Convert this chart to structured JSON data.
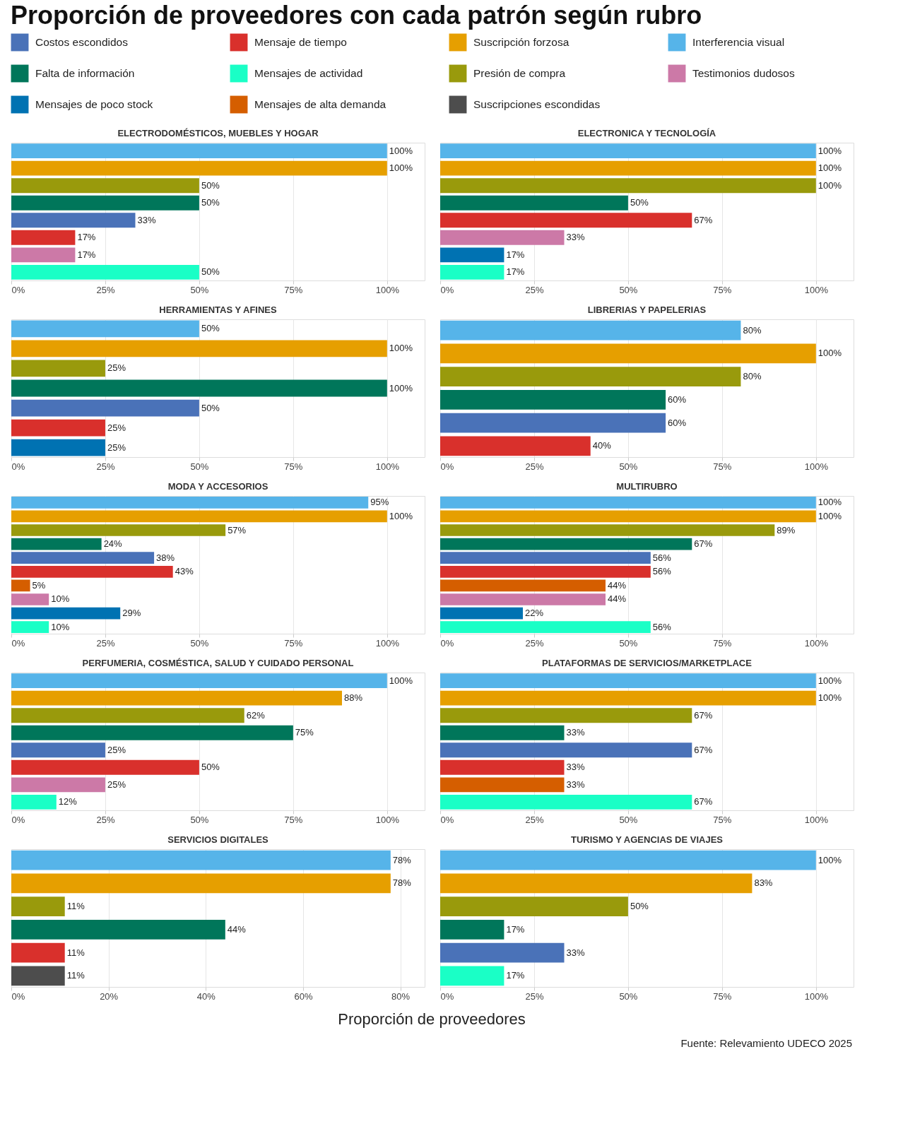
{
  "chart_data": [
    {
      "type": "other",
      "title": "Proporción de proveedores con cada patrón según rubro",
      "categories": [
        "Costos escondidos",
        "Falta de información",
        "Mensajes de poco stock",
        "Mensaje de tiempo",
        "Mensajes de actividad",
        "Mensajes de alta demanda",
        "Suscripción forzosa",
        "Presión de compra",
        "Suscripciones escondidas",
        "Interferencia visual",
        "Testimonios dudosos"
      ],
      "colors": [
        "#4a72b8",
        "#00765a",
        "#0072b2",
        "#d9302c",
        "#1affc6",
        "#d55e00",
        "#e69f00",
        "#999a0c",
        "#4d4d4d",
        "#56b4e9",
        "#cc79a7"
      ]
    },
    {
      "type": "bar",
      "orientation": "horizontal",
      "title": "ELECTRODOMÉSTICOS, MUEBLES Y HOGAR",
      "grid": "x",
      "xlim": [
        0,
        110
      ],
      "xticks": [
        {
          "value": 0,
          "label": "0%"
        },
        {
          "value": 25,
          "label": "25%"
        },
        {
          "value": 50,
          "label": "50%"
        },
        {
          "value": 75,
          "label": "75%"
        },
        {
          "value": 100,
          "label": "100%"
        }
      ],
      "categories": [
        null,
        null,
        null,
        null,
        null,
        null,
        null,
        null
      ],
      "values": [
        100,
        100,
        50,
        50,
        33,
        17,
        17,
        50
      ],
      "colors": [
        "#56b4e9",
        "#e69f00",
        "#999a0c",
        "#00765a",
        "#4a72b8",
        "#d9302c",
        "#cc79a7",
        "#1affc6"
      ],
      "value_labels": [
        "100%",
        "100%",
        "50%",
        "50%",
        "33%",
        "17%",
        "17%",
        "50%"
      ]
    },
    {
      "type": "bar",
      "orientation": "horizontal",
      "title": "ELECTRONICA Y TECNOLOGÍA",
      "grid": "x",
      "xlim": [
        0,
        110
      ],
      "xticks": [
        {
          "value": 0,
          "label": "0%"
        },
        {
          "value": 25,
          "label": "25%"
        },
        {
          "value": 50,
          "label": "50%"
        },
        {
          "value": 75,
          "label": "75%"
        },
        {
          "value": 100,
          "label": "100%"
        }
      ],
      "categories": [
        null,
        null,
        null,
        null,
        null,
        null,
        null,
        null
      ],
      "values": [
        100,
        100,
        100,
        50,
        67,
        33,
        17,
        17
      ],
      "colors": [
        "#56b4e9",
        "#e69f00",
        "#999a0c",
        "#00765a",
        "#d9302c",
        "#cc79a7",
        "#0072b2",
        "#1affc6"
      ],
      "value_labels": [
        "100%",
        "100%",
        "100%",
        "50%",
        "67%",
        "33%",
        "17%",
        "17%"
      ]
    },
    {
      "type": "bar",
      "orientation": "horizontal",
      "title": "HERRAMIENTAS Y AFINES",
      "grid": "x",
      "xlim": [
        0,
        110
      ],
      "xticks": [
        {
          "value": 0,
          "label": "0%"
        },
        {
          "value": 25,
          "label": "25%"
        },
        {
          "value": 50,
          "label": "50%"
        },
        {
          "value": 75,
          "label": "75%"
        },
        {
          "value": 100,
          "label": "100%"
        }
      ],
      "categories": [
        null,
        null,
        null,
        null,
        null,
        null,
        null
      ],
      "values": [
        50,
        100,
        25,
        100,
        50,
        25,
        25
      ],
      "colors": [
        "#56b4e9",
        "#e69f00",
        "#999a0c",
        "#00765a",
        "#4a72b8",
        "#d9302c",
        "#0072b2"
      ],
      "value_labels": [
        "50%",
        "100%",
        "25%",
        "100%",
        "50%",
        "25%",
        "25%"
      ]
    },
    {
      "type": "bar",
      "orientation": "horizontal",
      "title": "LIBRERIAS Y PAPELERIAS",
      "grid": "x",
      "xlim": [
        0,
        110
      ],
      "xticks": [
        {
          "value": 0,
          "label": "0%"
        },
        {
          "value": 25,
          "label": "25%"
        },
        {
          "value": 50,
          "label": "50%"
        },
        {
          "value": 75,
          "label": "75%"
        },
        {
          "value": 100,
          "label": "100%"
        }
      ],
      "categories": [
        null,
        null,
        null,
        null,
        null,
        null
      ],
      "values": [
        80,
        100,
        80,
        60,
        60,
        40
      ],
      "colors": [
        "#56b4e9",
        "#e69f00",
        "#999a0c",
        "#00765a",
        "#4a72b8",
        "#d9302c"
      ],
      "value_labels": [
        "80%",
        "100%",
        "80%",
        "60%",
        "60%",
        "40%"
      ]
    },
    {
      "type": "bar",
      "orientation": "horizontal",
      "title": "MODA Y ACCESORIOS",
      "grid": "x",
      "xlim": [
        0,
        110
      ],
      "xticks": [
        {
          "value": 0,
          "label": "0%"
        },
        {
          "value": 25,
          "label": "25%"
        },
        {
          "value": 50,
          "label": "50%"
        },
        {
          "value": 75,
          "label": "75%"
        },
        {
          "value": 100,
          "label": "100%"
        }
      ],
      "categories": [
        null,
        null,
        null,
        null,
        null,
        null,
        null,
        null,
        null,
        null
      ],
      "values": [
        95,
        100,
        57,
        24,
        38,
        43,
        5,
        10,
        29,
        10
      ],
      "colors": [
        "#56b4e9",
        "#e69f00",
        "#999a0c",
        "#00765a",
        "#4a72b8",
        "#d9302c",
        "#d55e00",
        "#cc79a7",
        "#0072b2",
        "#1affc6"
      ],
      "value_labels": [
        "95%",
        "100%",
        "57%",
        "24%",
        "38%",
        "43%",
        "5%",
        "10%",
        "29%",
        "10%"
      ]
    },
    {
      "type": "bar",
      "orientation": "horizontal",
      "title": "MULTIRUBRO",
      "grid": "x",
      "xlim": [
        0,
        110
      ],
      "xticks": [
        {
          "value": 0,
          "label": "0%"
        },
        {
          "value": 25,
          "label": "25%"
        },
        {
          "value": 50,
          "label": "50%"
        },
        {
          "value": 75,
          "label": "75%"
        },
        {
          "value": 100,
          "label": "100%"
        }
      ],
      "categories": [
        null,
        null,
        null,
        null,
        null,
        null,
        null,
        null,
        null,
        null
      ],
      "values": [
        100,
        100,
        89,
        67,
        56,
        56,
        44,
        44,
        22,
        56
      ],
      "colors": [
        "#56b4e9",
        "#e69f00",
        "#999a0c",
        "#00765a",
        "#4a72b8",
        "#d9302c",
        "#d55e00",
        "#cc79a7",
        "#0072b2",
        "#1affc6"
      ],
      "value_labels": [
        "100%",
        "100%",
        "89%",
        "67%",
        "56%",
        "56%",
        "44%",
        "44%",
        "22%",
        "56%"
      ]
    },
    {
      "type": "bar",
      "orientation": "horizontal",
      "title": "PERFUMERIA, COSMÉSTICA, SALUD Y CUIDADO PERSONAL",
      "grid": "x",
      "xlim": [
        0,
        110
      ],
      "xticks": [
        {
          "value": 0,
          "label": "0%"
        },
        {
          "value": 25,
          "label": "25%"
        },
        {
          "value": 50,
          "label": "50%"
        },
        {
          "value": 75,
          "label": "75%"
        },
        {
          "value": 100,
          "label": "100%"
        }
      ],
      "categories": [
        null,
        null,
        null,
        null,
        null,
        null,
        null,
        null
      ],
      "values": [
        100,
        88,
        62,
        75,
        25,
        50,
        25,
        12
      ],
      "colors": [
        "#56b4e9",
        "#e69f00",
        "#999a0c",
        "#00765a",
        "#4a72b8",
        "#d9302c",
        "#cc79a7",
        "#1affc6"
      ],
      "value_labels": [
        "100%",
        "88%",
        "62%",
        "75%",
        "25%",
        "50%",
        "25%",
        "12%"
      ]
    },
    {
      "type": "bar",
      "orientation": "horizontal",
      "title": "PLATAFORMAS DE SERVICIOS/MARKETPLACE",
      "grid": "x",
      "xlim": [
        0,
        110
      ],
      "xticks": [
        {
          "value": 0,
          "label": "0%"
        },
        {
          "value": 25,
          "label": "25%"
        },
        {
          "value": 50,
          "label": "50%"
        },
        {
          "value": 75,
          "label": "75%"
        },
        {
          "value": 100,
          "label": "100%"
        }
      ],
      "categories": [
        null,
        null,
        null,
        null,
        null,
        null,
        null,
        null
      ],
      "values": [
        100,
        100,
        67,
        33,
        67,
        33,
        33,
        67
      ],
      "colors": [
        "#56b4e9",
        "#e69f00",
        "#999a0c",
        "#00765a",
        "#4a72b8",
        "#d9302c",
        "#d55e00",
        "#1affc6"
      ],
      "value_labels": [
        "100%",
        "100%",
        "67%",
        "33%",
        "67%",
        "33%",
        "33%",
        "67%"
      ]
    },
    {
      "type": "bar",
      "orientation": "horizontal",
      "title": "SERVICIOS DIGITALES",
      "grid": "x",
      "xlim": [
        0,
        85
      ],
      "xticks": [
        {
          "value": 0,
          "label": "0%"
        },
        {
          "value": 20,
          "label": "20%"
        },
        {
          "value": 40,
          "label": "40%"
        },
        {
          "value": 60,
          "label": "60%"
        },
        {
          "value": 80,
          "label": "80%"
        }
      ],
      "categories": [
        null,
        null,
        null,
        null,
        null,
        null
      ],
      "values": [
        78,
        78,
        11,
        44,
        11,
        11
      ],
      "colors": [
        "#56b4e9",
        "#e69f00",
        "#999a0c",
        "#00765a",
        "#d9302c",
        "#4d4d4d"
      ],
      "value_labels": [
        "78%",
        "78%",
        "11%",
        "44%",
        "11%",
        "11%"
      ]
    },
    {
      "type": "bar",
      "orientation": "horizontal",
      "title": "TURISMO Y AGENCIAS DE VIAJES",
      "grid": "x",
      "xlim": [
        0,
        110
      ],
      "xticks": [
        {
          "value": 0,
          "label": "0%"
        },
        {
          "value": 25,
          "label": "25%"
        },
        {
          "value": 50,
          "label": "50%"
        },
        {
          "value": 75,
          "label": "75%"
        },
        {
          "value": 100,
          "label": "100%"
        }
      ],
      "xlabel": "Proporción de proveedores",
      "annotations": [
        "Fuente: Relevamiento UDECO 2025"
      ],
      "categories": [
        null,
        null,
        null,
        null,
        null,
        null
      ],
      "values": [
        100,
        83,
        50,
        17,
        33,
        17
      ],
      "colors": [
        "#56b4e9",
        "#e69f00",
        "#999a0c",
        "#00765a",
        "#4a72b8",
        "#1affc6"
      ],
      "value_labels": [
        "100%",
        "83%",
        "50%",
        "17%",
        "33%",
        "17%"
      ]
    }
  ]
}
